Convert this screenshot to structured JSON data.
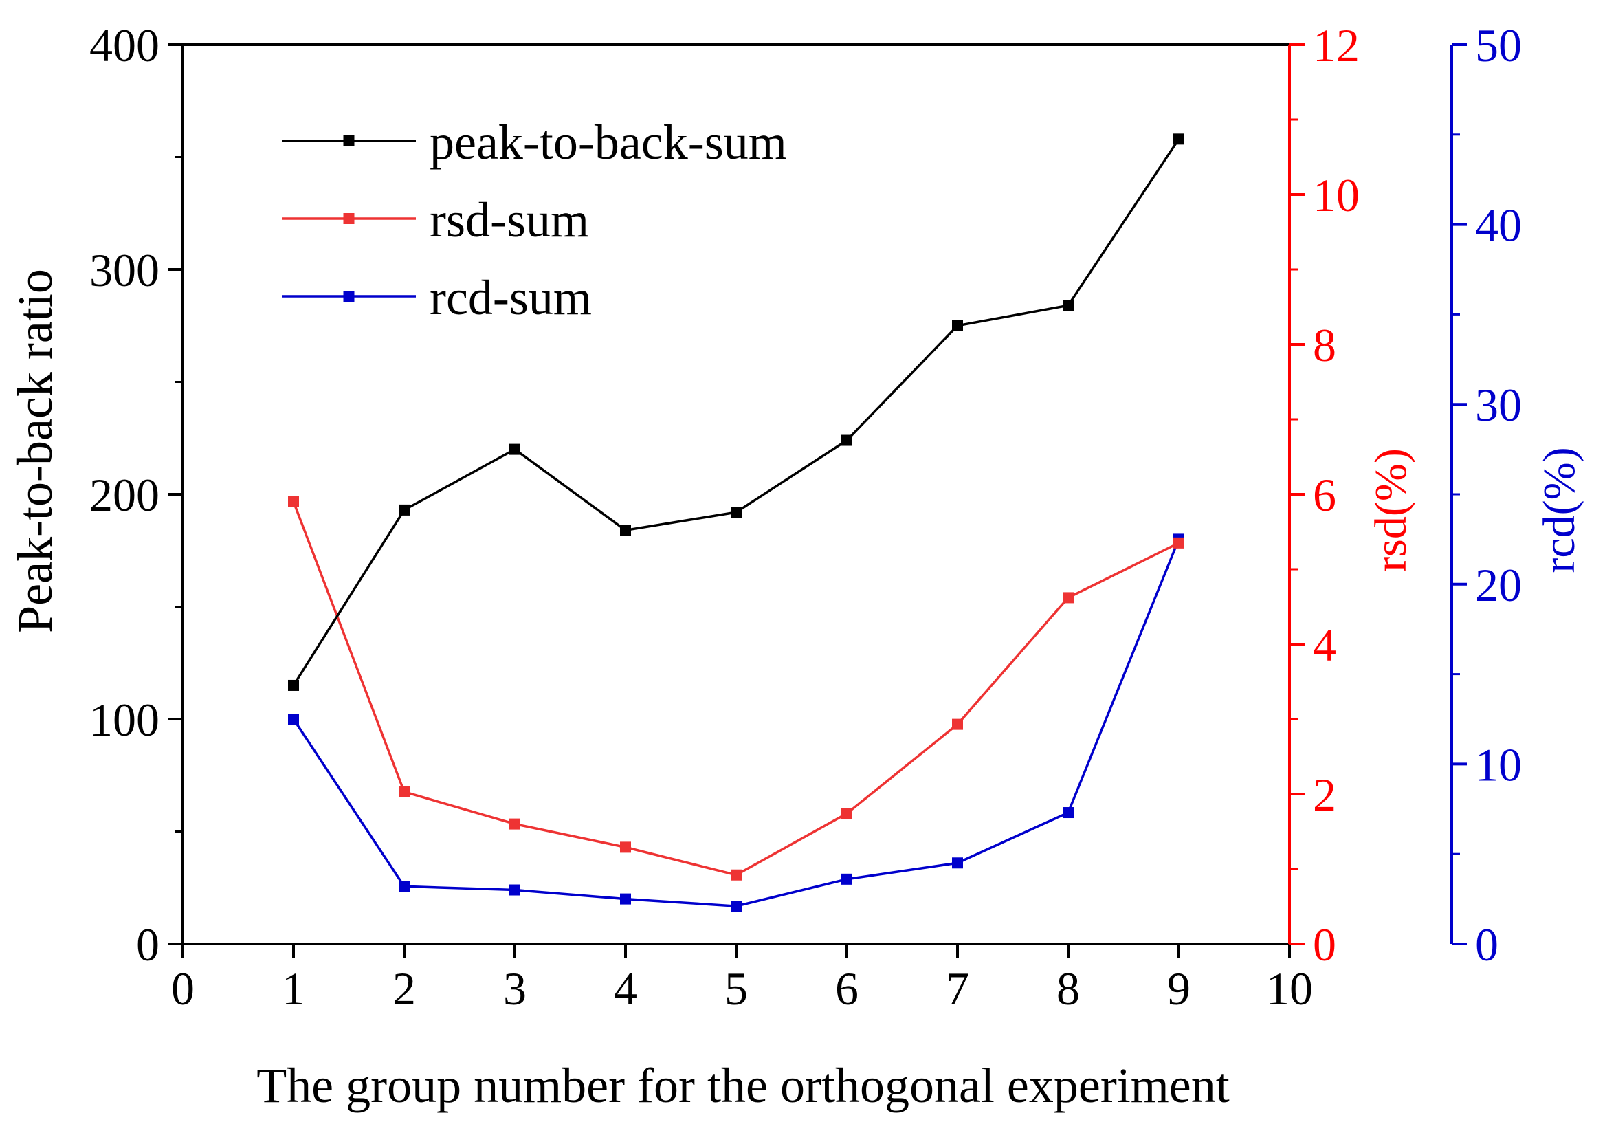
{
  "chart_data": {
    "type": "line",
    "title": "",
    "xlabel": "The group number for the orthogonal experiment",
    "x": [
      1,
      2,
      3,
      4,
      5,
      6,
      7,
      8,
      9
    ],
    "xlim": [
      0,
      10
    ],
    "x_ticks": [
      0,
      1,
      2,
      3,
      4,
      5,
      6,
      7,
      8,
      9,
      10
    ],
    "grid": false,
    "legend_position": "top-left",
    "axes": {
      "left": {
        "label": "Peak-to-back ratio",
        "ylim": [
          0,
          400
        ],
        "ticks": [
          0,
          100,
          200,
          300,
          400
        ],
        "color": "#000000"
      },
      "right1": {
        "label": "rsd(%)",
        "ylim": [
          0,
          12
        ],
        "ticks": [
          0,
          2,
          4,
          6,
          8,
          10,
          12
        ],
        "color": "#ff0000"
      },
      "right2": {
        "label": "rcd(%)",
        "ylim": [
          0,
          50
        ],
        "ticks": [
          0,
          10,
          20,
          30,
          40,
          50
        ],
        "color": "#0000cc"
      }
    },
    "series": [
      {
        "name": "peak-to-back-sum",
        "axis": "left",
        "color": "#000000",
        "values": [
          115,
          193,
          220,
          184,
          192,
          224,
          275,
          284,
          358
        ]
      },
      {
        "name": "rsd-sum",
        "axis": "right1",
        "color": "#ee3333",
        "values": [
          5.9,
          2.03,
          1.6,
          1.29,
          0.92,
          1.74,
          2.93,
          4.62,
          5.35
        ]
      },
      {
        "name": "rcd-sum",
        "axis": "right2",
        "color": "#0000cc",
        "values": [
          12.5,
          3.2,
          3.0,
          2.5,
          2.1,
          3.6,
          4.5,
          7.3,
          22.5
        ]
      }
    ]
  }
}
